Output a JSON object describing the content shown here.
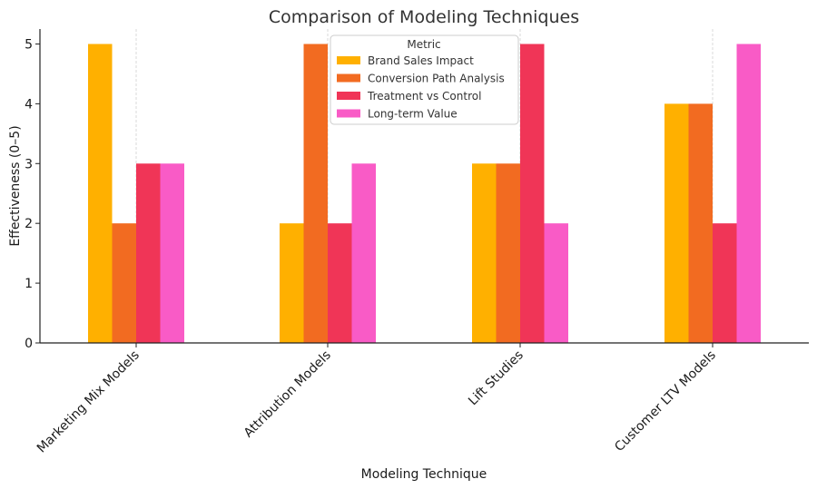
{
  "chart_data": {
    "type": "bar",
    "title": "Comparison of Modeling Techniques",
    "xlabel": "Modeling Technique",
    "ylabel": "Effectiveness (0–5)",
    "ylim": [
      0,
      5.25
    ],
    "yticks": [
      "0",
      "1",
      "2",
      "3",
      "4",
      "5"
    ],
    "categories": [
      "Marketing Mix Models",
      "Attribution Models",
      "Lift Studies",
      "Customer LTV Models"
    ],
    "legend_title": "Metric",
    "legend_position": "top-center",
    "grid": "vertical-dashed",
    "series": [
      {
        "name": "Brand Sales Impact",
        "color": "#FFB000",
        "values": [
          5,
          2,
          3,
          4
        ]
      },
      {
        "name": "Conversion Path Analysis",
        "color": "#F26B21",
        "values": [
          2,
          5,
          3,
          4
        ]
      },
      {
        "name": "Treatment vs Control",
        "color": "#F03557",
        "values": [
          3,
          2,
          5,
          2
        ]
      },
      {
        "name": "Long-term Value",
        "color": "#F95BC6",
        "values": [
          3,
          3,
          2,
          5
        ]
      }
    ]
  }
}
